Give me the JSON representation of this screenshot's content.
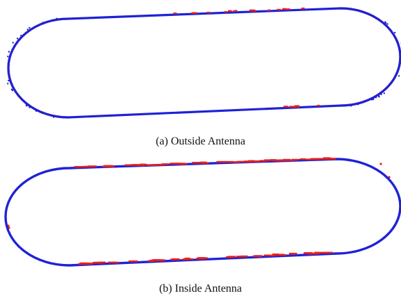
{
  "figure": {
    "panels": [
      {
        "id": "a",
        "caption": "(a) Outside Antenna"
      },
      {
        "id": "b",
        "caption": "(b) Inside Antenna"
      }
    ],
    "colors": {
      "track": "#1f22d6",
      "detections": "#e8201a",
      "background": "#ffffff"
    }
  }
}
